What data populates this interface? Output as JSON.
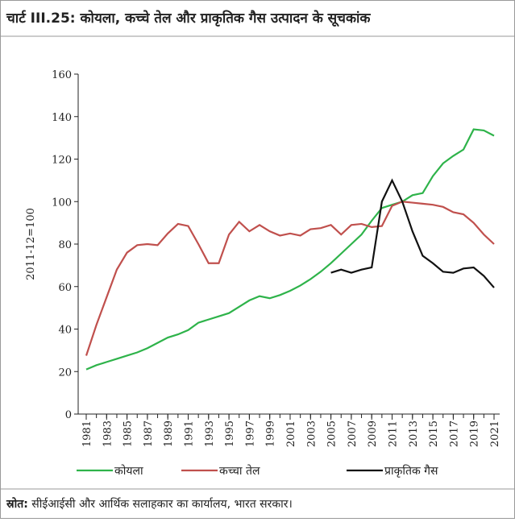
{
  "chart_data": {
    "type": "line",
    "title": "चार्ट III.25: कोयला, कच्चे तेल और प्राकृतिक गैस उत्पादन के सूचकांक",
    "ylabel": "2011-12=100",
    "x": [
      1981,
      1982,
      1983,
      1984,
      1985,
      1986,
      1987,
      1988,
      1989,
      1990,
      1991,
      1992,
      1993,
      1994,
      1995,
      1996,
      1997,
      1998,
      1999,
      2000,
      2001,
      2002,
      2003,
      2004,
      2005,
      2006,
      2007,
      2008,
      2009,
      2010,
      2011,
      2012,
      2013,
      2014,
      2015,
      2016,
      2017,
      2018,
      2019,
      2020,
      2021
    ],
    "xlim": [
      1981,
      2021
    ],
    "xticks": [
      1981,
      1983,
      1985,
      1987,
      1989,
      1991,
      1993,
      1995,
      1997,
      1999,
      2001,
      2003,
      2005,
      2007,
      2009,
      2011,
      2013,
      2015,
      2017,
      2019,
      2021
    ],
    "ylim": [
      0,
      160
    ],
    "yticks": [
      0,
      20,
      40,
      60,
      80,
      100,
      120,
      140,
      160
    ],
    "series": [
      {
        "name": "कोयला",
        "color": "#2eb34a",
        "values": [
          21,
          23,
          24.5,
          26,
          27.5,
          29,
          31,
          33.5,
          36,
          37.5,
          39.5,
          43,
          44.5,
          46,
          47.5,
          50.5,
          53.5,
          55.5,
          54.5,
          56,
          58,
          60.5,
          63.5,
          67,
          71,
          75.5,
          80,
          84.5,
          91,
          97,
          98.5,
          100,
          103,
          104,
          112,
          118,
          121.5,
          124.5,
          134,
          133.5,
          131
        ]
      },
      {
        "name": "कच्चा तेल",
        "color": "#c0504d",
        "values": [
          27.5,
          42,
          55,
          68,
          76,
          79.5,
          80,
          79.5,
          85,
          89.5,
          88.5,
          80,
          71,
          71,
          84.5,
          90.5,
          86,
          89,
          86,
          84,
          85,
          84,
          87,
          87.5,
          89,
          84.5,
          89,
          89.5,
          88,
          88.5,
          98,
          100,
          99.5,
          99,
          98.5,
          97.5,
          95,
          94,
          90,
          84.5,
          80
        ]
      },
      {
        "name": "प्राकृतिक गैस",
        "color": "#111111",
        "values": [
          null,
          null,
          null,
          null,
          null,
          null,
          null,
          null,
          null,
          null,
          null,
          null,
          null,
          null,
          null,
          null,
          null,
          null,
          null,
          null,
          null,
          null,
          null,
          null,
          66.5,
          68,
          66.5,
          68,
          69,
          100,
          110,
          100,
          86,
          74.5,
          71,
          67,
          66.5,
          68.5,
          69,
          65,
          59.5
        ]
      }
    ],
    "source": {
      "label": "स्रोत:",
      "text": " सीईआईसी और आर्थिक सलाहकार का कार्यालय, भारत सरकार।"
    }
  }
}
